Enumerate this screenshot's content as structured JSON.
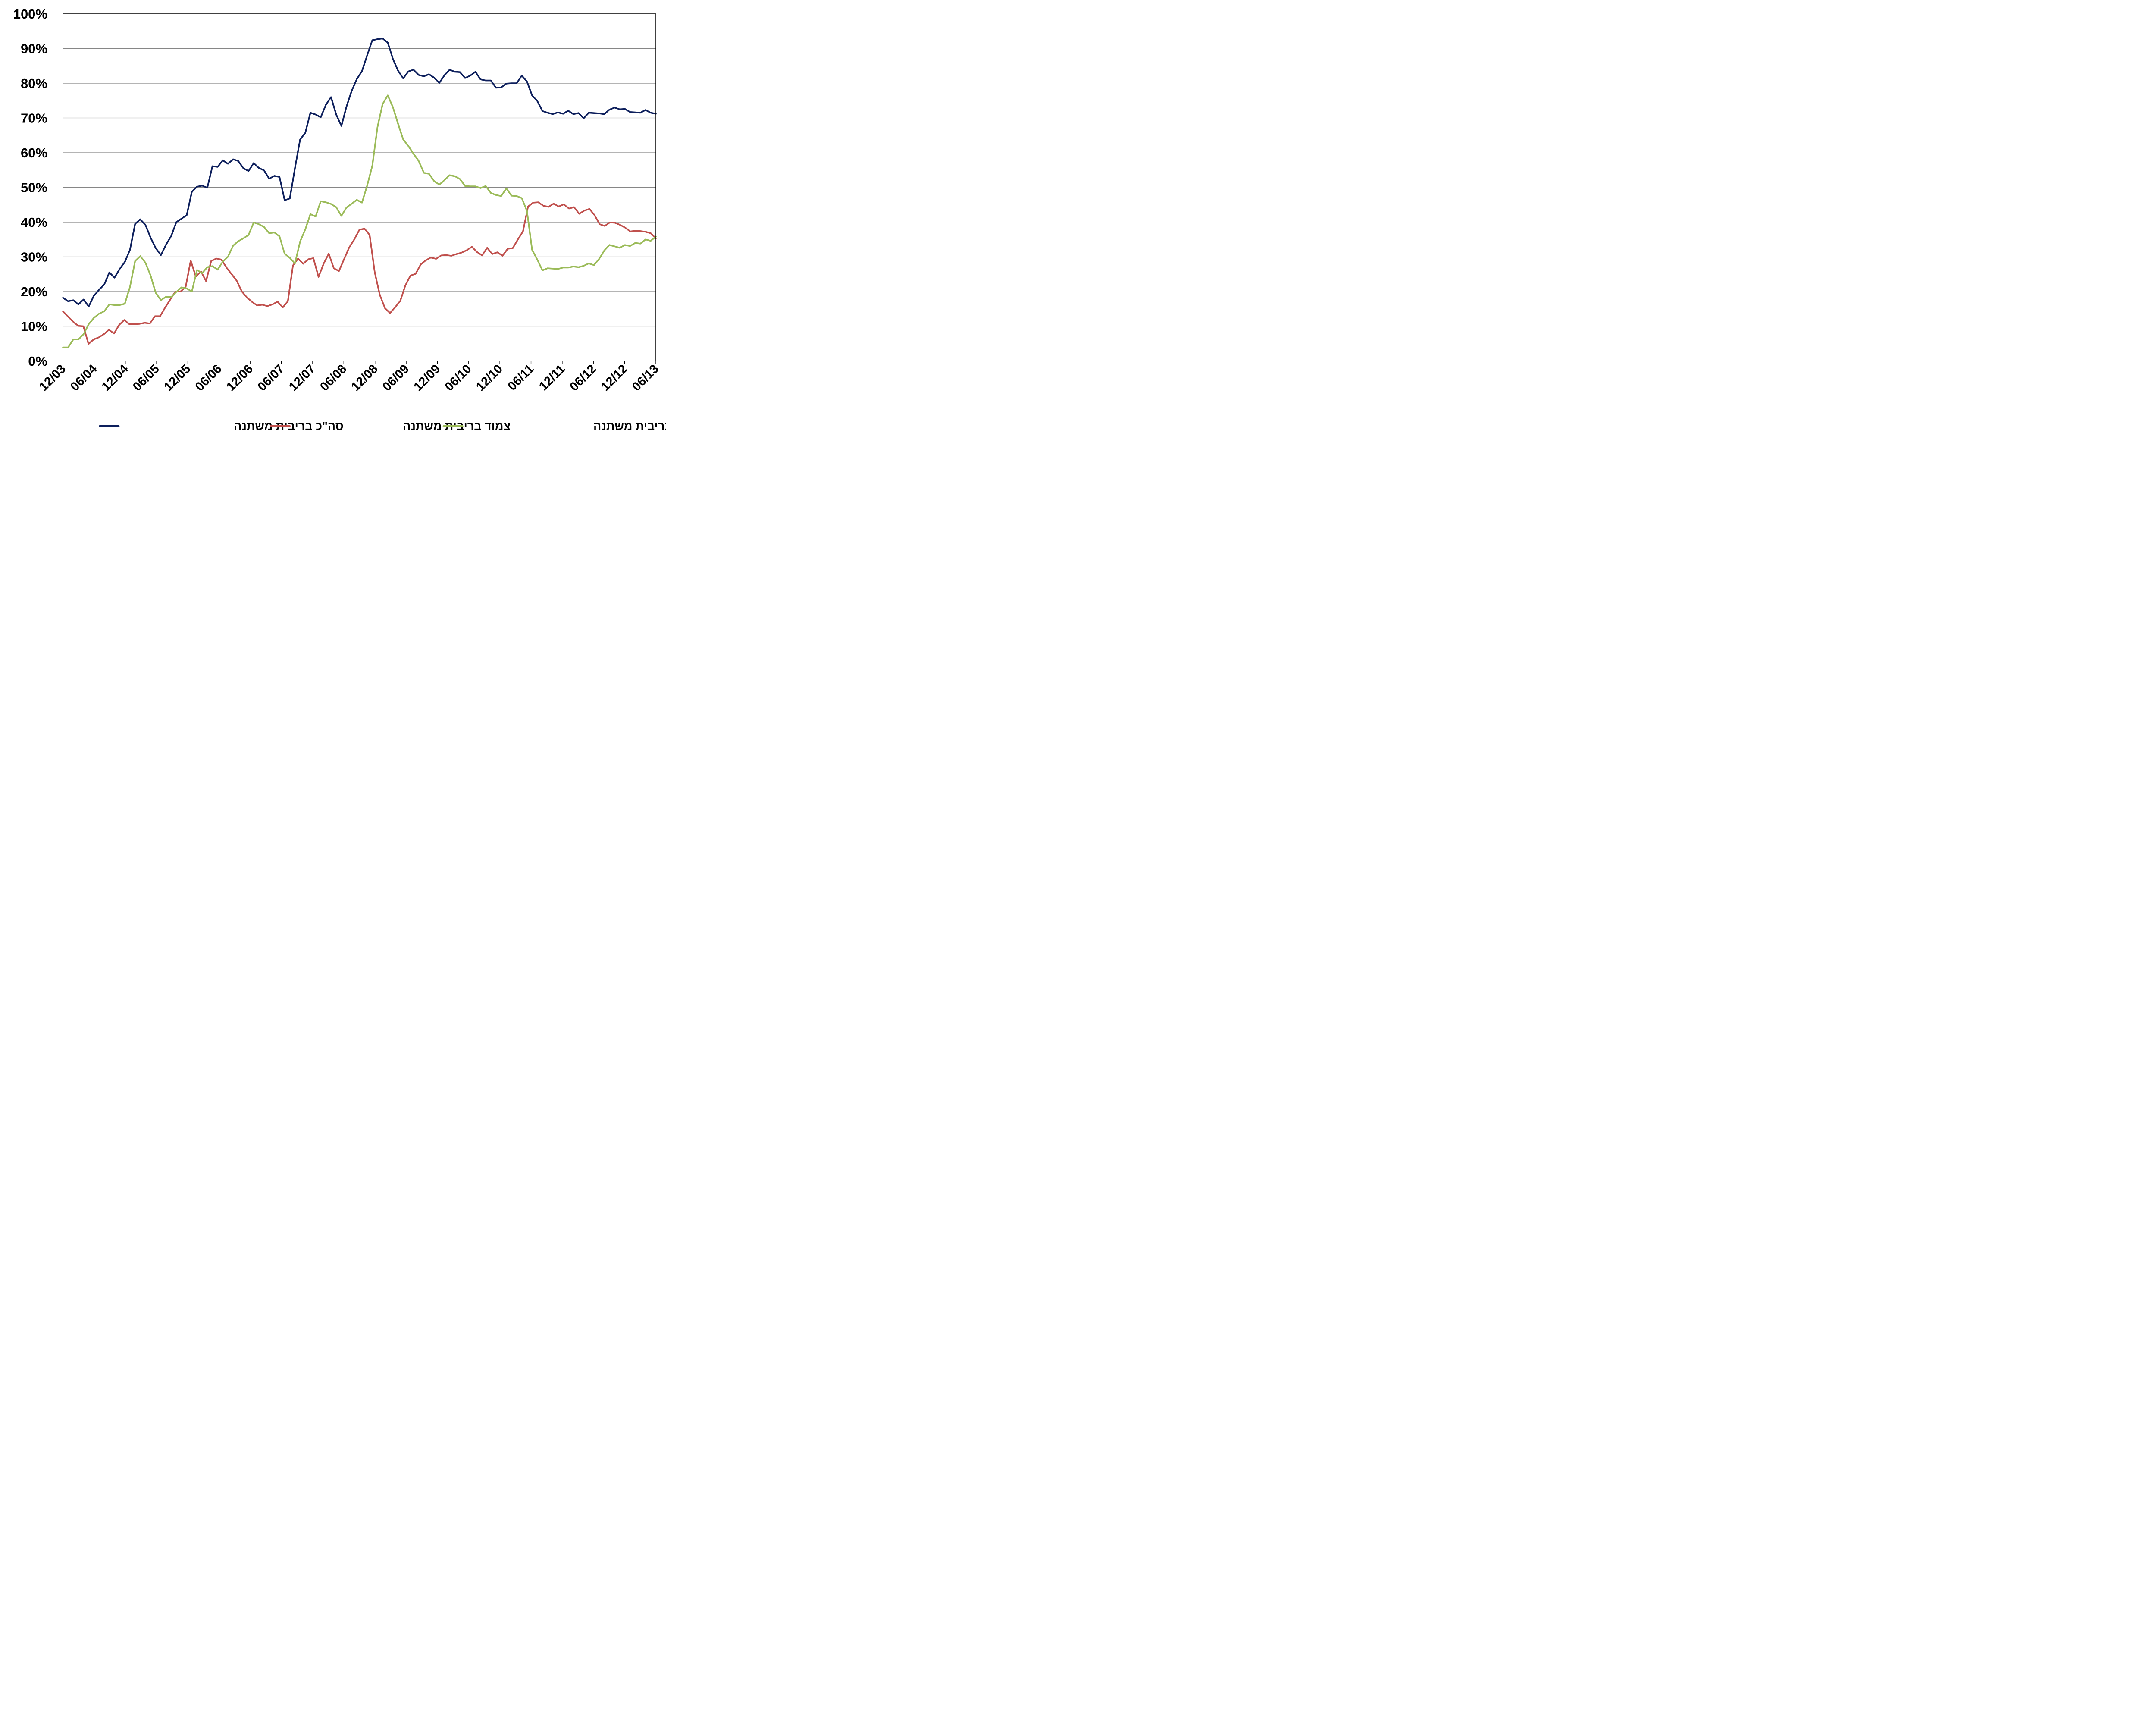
{
  "chart_data": {
    "type": "line",
    "title": "",
    "xlabel": "",
    "ylabel": "",
    "ylim": [
      0,
      100
    ],
    "y_ticks": [
      "0%",
      "10%",
      "20%",
      "30%",
      "40%",
      "50%",
      "60%",
      "70%",
      "80%",
      "90%",
      "100%"
    ],
    "x_tick_labels": [
      "12/03",
      "06/04",
      "12/04",
      "06/05",
      "12/05",
      "06/06",
      "12/06",
      "06/07",
      "12/07",
      "06/08",
      "12/08",
      "06/09",
      "12/09",
      "06/10",
      "12/10",
      "06/11",
      "12/11",
      "06/12",
      "12/12",
      "06/13"
    ],
    "x_start": "2003-12",
    "x_end": "2013-06",
    "grid": "horizontal",
    "legend_position": "bottom",
    "series": [
      {
        "name": "סה\"כ בריבית משתנה",
        "color": "#0d1f5c",
        "values": [
          18.2,
          17.2,
          17.5,
          16.3,
          17.7,
          15.7,
          18.8,
          20.5,
          22.0,
          25.5,
          24.0,
          26.5,
          28.5,
          32.0,
          39.5,
          40.8,
          39.2,
          35.5,
          32.5,
          30.5,
          33.5,
          36.0,
          40.0,
          41.0,
          42.0,
          48.7,
          50.2,
          50.5,
          49.9,
          56.1,
          55.9,
          57.8,
          56.8,
          58.1,
          57.6,
          55.5,
          54.7,
          57.0,
          55.6,
          54.9,
          52.5,
          53.3,
          53.0,
          46.3,
          46.8,
          55.5,
          63.8,
          65.7,
          71.5,
          71.0,
          70.2,
          73.8,
          76.0,
          71.0,
          67.7,
          73.3,
          77.8,
          81.2,
          83.5,
          88.0,
          92.4,
          92.7,
          92.9,
          91.7,
          87.0,
          83.6,
          81.4,
          83.4,
          83.9,
          82.4,
          82.0,
          82.6,
          81.6,
          80.1,
          82.3,
          83.9,
          83.3,
          83.2,
          81.5,
          82.2,
          83.3,
          81.1,
          80.8,
          80.8,
          78.7,
          78.8,
          79.9,
          80.0,
          80.0,
          82.2,
          80.5,
          76.5,
          74.9,
          72.0,
          71.5,
          71.1,
          71.6,
          71.2,
          72.1,
          71.1,
          71.4,
          69.9,
          71.5,
          71.4,
          71.3,
          71.1,
          72.4,
          73.0,
          72.5,
          72.6,
          71.7,
          71.6,
          71.5,
          72.3,
          71.5,
          71.2
        ]
      },
      {
        "name": "צמוד בריבית משתנה",
        "color": "#c0504d",
        "values": [
          14.3,
          12.8,
          11.3,
          10.1,
          10.0,
          4.9,
          6.2,
          6.8,
          7.7,
          9.0,
          7.9,
          10.4,
          11.8,
          10.6,
          10.6,
          10.7,
          11.0,
          10.8,
          12.9,
          12.9,
          15.4,
          17.7,
          20.0,
          20.0,
          21.3,
          28.9,
          24.3,
          25.8,
          23.0,
          28.8,
          29.5,
          29.2,
          26.9,
          25.0,
          23.1,
          20.0,
          18.3,
          17.0,
          16.0,
          16.2,
          15.8,
          16.3,
          17.1,
          15.4,
          17.2,
          27.5,
          29.5,
          28.0,
          29.3,
          29.6,
          24.2,
          28.0,
          30.9,
          26.7,
          25.9,
          29.3,
          32.7,
          35.0,
          37.8,
          38.1,
          36.3,
          25.5,
          19.0,
          15.2,
          13.8,
          15.5,
          17.3,
          21.8,
          24.6,
          25.1,
          27.8,
          29.0,
          29.8,
          29.4,
          30.4,
          30.5,
          30.3,
          30.8,
          31.2,
          31.9,
          32.9,
          31.4,
          30.4,
          32.6,
          30.8,
          31.3,
          30.3,
          32.3,
          32.5,
          35.0,
          37.3,
          44.5,
          45.6,
          45.7,
          44.7,
          44.4,
          45.3,
          44.5,
          45.1,
          43.9,
          44.3,
          42.4,
          43.3,
          43.8,
          42.0,
          39.4,
          38.9,
          39.9,
          39.8,
          39.2,
          38.4,
          37.3,
          37.5,
          37.4,
          37.2,
          36.8,
          35.3
        ]
      },
      {
        "name": "לא צמוד בריבית משתנה",
        "color": "#9bbb59",
        "values": [
          3.9,
          3.9,
          6.2,
          6.2,
          7.7,
          10.6,
          12.4,
          13.6,
          14.3,
          16.3,
          16.1,
          16.1,
          16.5,
          21.3,
          28.8,
          30.2,
          28.3,
          24.6,
          19.6,
          17.5,
          18.5,
          18.4,
          19.9,
          21.2,
          20.9,
          20.0,
          26.2,
          25.3,
          27.0,
          27.3,
          26.3,
          28.6,
          30.0,
          33.2,
          34.5,
          35.3,
          36.3,
          39.9,
          39.4,
          38.6,
          36.8,
          37.0,
          35.9,
          30.9,
          29.7,
          28.1,
          34.4,
          37.9,
          42.3,
          41.6,
          46.0,
          45.7,
          45.2,
          44.3,
          41.8,
          44.2,
          45.3,
          46.4,
          45.6,
          50.5,
          56.2,
          67.3,
          74.0,
          76.5,
          73.1,
          68.3,
          63.8,
          61.9,
          59.7,
          57.6,
          54.2,
          53.9,
          51.8,
          50.8,
          52.1,
          53.5,
          53.2,
          52.4,
          50.4,
          50.3,
          50.3,
          49.8,
          50.4,
          48.4,
          47.8,
          47.5,
          49.7,
          47.6,
          47.5,
          46.9,
          43.2,
          32.0,
          29.2,
          26.1,
          26.7,
          26.6,
          26.5,
          26.9,
          26.9,
          27.2,
          27.0,
          27.4,
          28.1,
          27.6,
          29.4,
          31.8,
          33.4,
          33.0,
          32.6,
          33.4,
          33.1,
          34.0,
          33.8,
          35.0,
          34.6,
          35.8
        ]
      }
    ]
  }
}
